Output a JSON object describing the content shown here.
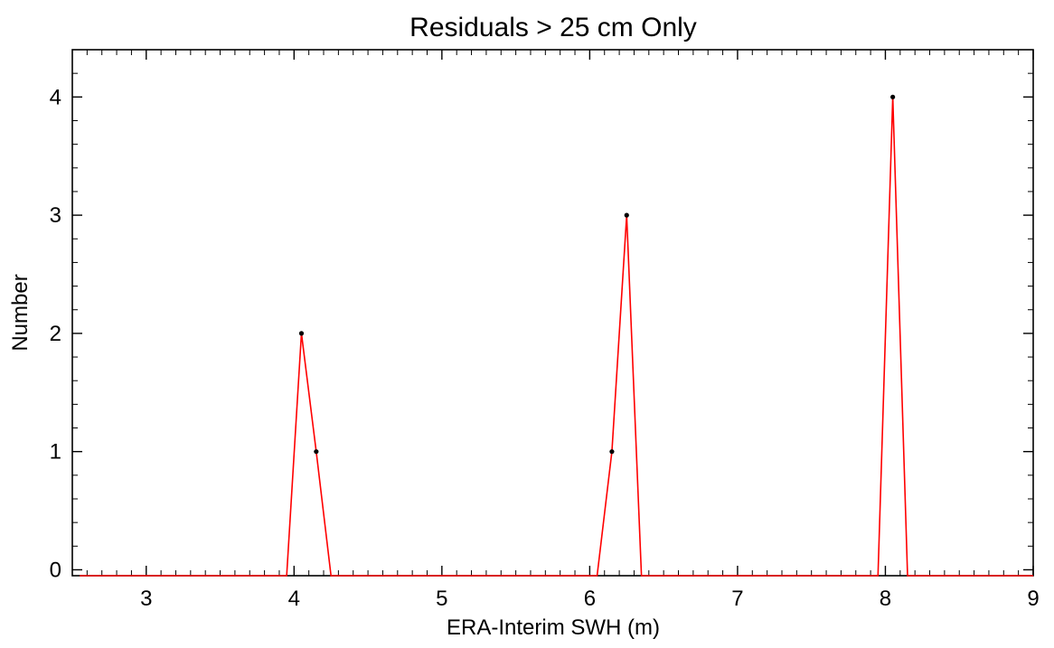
{
  "chart_data": {
    "type": "line",
    "title": "Residuals > 25 cm Only",
    "xlabel": "ERA-Interim SWH (m)",
    "ylabel": "Number",
    "xlim": [
      2.5,
      9
    ],
    "ylim": [
      -0.05,
      4.4
    ],
    "xticks": [
      {
        "value": 3,
        "label": "3"
      },
      {
        "value": 4,
        "label": "4"
      },
      {
        "value": 5,
        "label": "5"
      },
      {
        "value": 6,
        "label": "6"
      },
      {
        "value": 7,
        "label": "7"
      },
      {
        "value": 8,
        "label": "8"
      },
      {
        "value": 9,
        "label": "9"
      }
    ],
    "yticks": [
      {
        "value": 0,
        "label": "0"
      },
      {
        "value": 1,
        "label": "1"
      },
      {
        "value": 2,
        "label": "2"
      },
      {
        "value": 3,
        "label": "3"
      },
      {
        "value": 4,
        "label": "4"
      }
    ],
    "series": [
      {
        "color": "#ff0000",
        "marker_color": "#000000",
        "x": [
          2.55,
          3.95,
          4.05,
          4.15,
          4.25,
          6.05,
          6.15,
          6.25,
          6.35,
          7.95,
          8.05,
          8.15,
          9.0
        ],
        "y": [
          -0.05,
          -0.05,
          2,
          1,
          -0.05,
          -0.05,
          1,
          3,
          -0.05,
          -0.05,
          4,
          -0.05,
          -0.05
        ],
        "markers": [
          {
            "x": 4.05,
            "y": 2
          },
          {
            "x": 4.15,
            "y": 1
          },
          {
            "x": 6.15,
            "y": 1
          },
          {
            "x": 6.25,
            "y": 3
          },
          {
            "x": 8.05,
            "y": 4
          }
        ]
      }
    ],
    "grid": false,
    "legend": "none"
  }
}
